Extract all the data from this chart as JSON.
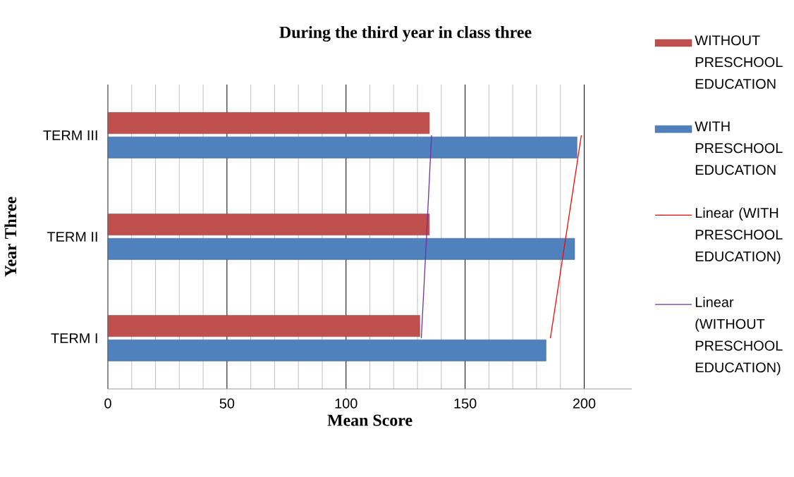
{
  "chart_data": {
    "type": "bar",
    "orientation": "horizontal",
    "title": "During the third year in class three",
    "xlabel": "Mean Score",
    "ylabel": "Year Three",
    "categories": [
      "TERM III",
      "TERM II",
      "TERM I"
    ],
    "series": [
      {
        "name": "WITHOUT PRESCHOOL EDUCATION",
        "color": "#c0504d",
        "values": [
          135,
          135,
          131
        ]
      },
      {
        "name": "WITH PRESCHOOL EDUCATION",
        "color": "#4f81bd",
        "values": [
          197,
          196,
          184
        ]
      },
      {
        "name": "Linear (WITH PRESCHOOL EDUCATION)",
        "type": "line",
        "color": "#ff0000",
        "values": [
          198.8,
          192.3,
          185.8
        ]
      },
      {
        "name": "Linear (WITHOUT PRESCHOOL EDUCATION)",
        "type": "line",
        "color": "#7030a0",
        "values": [
          135.9,
          133.8,
          131.6
        ]
      }
    ],
    "xlim": [
      0,
      220
    ],
    "xticks": [
      0,
      50,
      100,
      150,
      200
    ],
    "grid": "x",
    "legend": "right"
  }
}
